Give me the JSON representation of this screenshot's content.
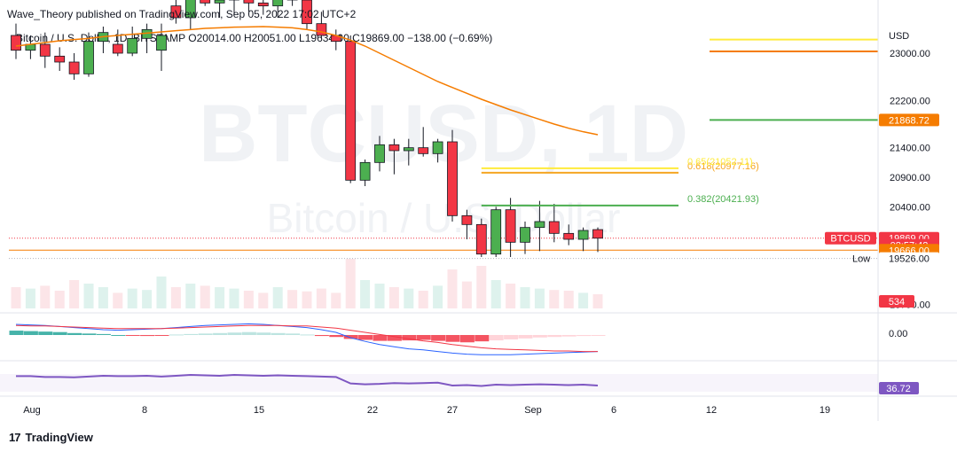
{
  "header": {
    "publisher": "Wave_Theory published on TradingView.com, Sep 05, 2022 17:02 UTC+2"
  },
  "brand": {
    "name": "TradingView",
    "mark": "17"
  },
  "chart_data": {
    "type": "candlestick",
    "symbol_line": "Bitcoin / U.S. Dollar, 1D, BITSTAMP",
    "ohlc_legend": {
      "o": "O20014.00",
      "h": "H20051.00",
      "l": "L19634.00",
      "c": "C19869.00",
      "change": "−138.00 (−0.69%)"
    },
    "watermark": {
      "ticker": "BTCUSD, 1D",
      "name": "Bitcoin / U.S. Dollar"
    },
    "currency": "USD",
    "price_ticks": [
      "23000.00",
      "22200.00",
      "21400.00",
      "20900.00",
      "20400.00",
      "18750.00"
    ],
    "price_tick_values": [
      23000,
      22200,
      21400,
      20900,
      20400,
      18750
    ],
    "x_ticks": [
      "Aug",
      "8",
      "15",
      "22",
      "27",
      "Sep",
      "6",
      "12",
      "19"
    ],
    "candles": [
      {
        "o": 23300,
        "h": 23500,
        "l": 22900,
        "c": 23050
      },
      {
        "o": 23050,
        "h": 23300,
        "l": 22900,
        "c": 23150
      },
      {
        "o": 23150,
        "h": 23350,
        "l": 22750,
        "c": 22950
      },
      {
        "o": 22950,
        "h": 23100,
        "l": 22700,
        "c": 22850
      },
      {
        "o": 22850,
        "h": 23000,
        "l": 22550,
        "c": 22650
      },
      {
        "o": 22650,
        "h": 23350,
        "l": 22600,
        "c": 23200
      },
      {
        "o": 23200,
        "h": 23450,
        "l": 23000,
        "c": 23350
      },
      {
        "o": 23150,
        "h": 23400,
        "l": 22950,
        "c": 23000
      },
      {
        "o": 23000,
        "h": 23450,
        "l": 22950,
        "c": 23250
      },
      {
        "o": 23250,
        "h": 23500,
        "l": 23000,
        "c": 23400
      },
      {
        "o": 23050,
        "h": 23500,
        "l": 22700,
        "c": 23300
      },
      {
        "o": 23800,
        "h": 24200,
        "l": 23500,
        "c": 23600
      },
      {
        "o": 23600,
        "h": 24300,
        "l": 23400,
        "c": 24100
      },
      {
        "o": 24100,
        "h": 24400,
        "l": 23800,
        "c": 23850
      },
      {
        "o": 23850,
        "h": 24200,
        "l": 23600,
        "c": 23900
      },
      {
        "o": 23900,
        "h": 24400,
        "l": 23650,
        "c": 24200
      },
      {
        "o": 24000,
        "h": 24300,
        "l": 23700,
        "c": 23850
      },
      {
        "o": 23850,
        "h": 24100,
        "l": 23650,
        "c": 23800
      },
      {
        "o": 23800,
        "h": 24200,
        "l": 23600,
        "c": 24000
      },
      {
        "o": 24000,
        "h": 24300,
        "l": 23800,
        "c": 23900
      },
      {
        "o": 23900,
        "h": 24100,
        "l": 23400,
        "c": 23500
      },
      {
        "o": 23500,
        "h": 23700,
        "l": 23250,
        "c": 23300
      },
      {
        "o": 23300,
        "h": 23400,
        "l": 23050,
        "c": 23200
      },
      {
        "o": 23200,
        "h": 23300,
        "l": 20800,
        "c": 20850
      },
      {
        "o": 20850,
        "h": 21200,
        "l": 20750,
        "c": 21150
      },
      {
        "o": 21150,
        "h": 21600,
        "l": 21000,
        "c": 21450
      },
      {
        "o": 21450,
        "h": 21550,
        "l": 20950,
        "c": 21350
      },
      {
        "o": 21350,
        "h": 21550,
        "l": 21100,
        "c": 21400
      },
      {
        "o": 21400,
        "h": 21750,
        "l": 21250,
        "c": 21300
      },
      {
        "o": 21300,
        "h": 21550,
        "l": 21150,
        "c": 21500
      },
      {
        "o": 21500,
        "h": 21700,
        "l": 20150,
        "c": 20250
      },
      {
        "o": 20250,
        "h": 20350,
        "l": 19850,
        "c": 20100
      },
      {
        "o": 20100,
        "h": 20200,
        "l": 19550,
        "c": 19600
      },
      {
        "o": 19600,
        "h": 20400,
        "l": 19550,
        "c": 20350
      },
      {
        "o": 20350,
        "h": 20550,
        "l": 19550,
        "c": 19800
      },
      {
        "o": 19800,
        "h": 20150,
        "l": 19600,
        "c": 20050
      },
      {
        "o": 20050,
        "h": 20500,
        "l": 19650,
        "c": 20150
      },
      {
        "o": 20150,
        "h": 20450,
        "l": 19800,
        "c": 19950
      },
      {
        "o": 19950,
        "h": 20100,
        "l": 19750,
        "c": 19850
      },
      {
        "o": 19850,
        "h": 20050,
        "l": 19650,
        "c": 20000
      },
      {
        "o": 20014,
        "h": 20051,
        "l": 19634,
        "c": 19869
      }
    ],
    "ma_values": [
      23120,
      23150,
      23180,
      23210,
      23230,
      23250,
      23280,
      23300,
      23320,
      23340,
      23360,
      23380,
      23400,
      23420,
      23430,
      23440,
      23445,
      23450,
      23440,
      23430,
      23400,
      23360,
      23300,
      23220,
      23120,
      23000,
      22880,
      22760,
      22640,
      22520,
      22420,
      22320,
      22220,
      22130,
      22040,
      21960,
      21880,
      21800,
      21730,
      21670,
      21620
    ],
    "fib_levels": [
      {
        "label": "0.382(20421.93)",
        "value": 20421.93,
        "color": "#4caf50"
      },
      {
        "label": "0.618(20977.16)",
        "value": 20977.16,
        "color": "#f5a623"
      },
      {
        "label": "0.65(21052.11)",
        "value": 21052.11,
        "color": "#ffeb3b"
      }
    ],
    "right_lines": [
      {
        "value": 23230,
        "color": "#ffeb3b"
      },
      {
        "value": 23030,
        "color": "#f57c00"
      },
      {
        "value": 21868.72,
        "color": "#4caf50"
      }
    ],
    "price_labels": [
      {
        "text": "21868.72",
        "bg": "#f57c00",
        "value": 21868.72
      },
      {
        "text": "19869.00",
        "bg": "#f23645",
        "value": 19869
      },
      {
        "text": "08:57:42",
        "bg": "#f23645",
        "value": 19750
      },
      {
        "text": "19666.00",
        "bg": "#f57c00",
        "value": 19666
      },
      {
        "text": "19526.00",
        "bg": "#ffffff",
        "value": 19526
      }
    ],
    "btc_tag": "BTCUSD",
    "low_label": "Low",
    "volume_tag": "534",
    "volume": [
      30,
      28,
      32,
      25,
      40,
      35,
      30,
      22,
      28,
      26,
      45,
      30,
      35,
      32,
      30,
      28,
      25,
      22,
      30,
      26,
      24,
      28,
      22,
      70,
      40,
      35,
      30,
      28,
      25,
      32,
      55,
      38,
      60,
      40,
      35,
      30,
      28,
      26,
      25,
      22,
      20
    ],
    "macd": {
      "zero_label": "0.00",
      "hist": [
        9,
        8,
        7,
        6,
        4,
        3,
        2,
        0,
        -1,
        -2,
        -1,
        1,
        2,
        3,
        4,
        5,
        6,
        5,
        4,
        3,
        1,
        -2,
        -4,
        -8,
        -10,
        -12,
        -12,
        -11,
        -10,
        -12,
        -14,
        -15,
        -13,
        -11,
        -9,
        -7,
        -5,
        -4,
        -3,
        -2,
        -1
      ],
      "macd_line": [
        20,
        19,
        18,
        16,
        14,
        12,
        10,
        9,
        10,
        11,
        12,
        14,
        16,
        18,
        19,
        20,
        21,
        20,
        18,
        16,
        14,
        10,
        5,
        -5,
        -12,
        -18,
        -22,
        -26,
        -28,
        -31,
        -34,
        -36,
        -37,
        -37,
        -37,
        -36,
        -35,
        -34,
        -33,
        -32,
        -31
      ],
      "signal_line": [
        18,
        17,
        17,
        16,
        15,
        14,
        13,
        12,
        12,
        12,
        12,
        13,
        14,
        15,
        16,
        17,
        18,
        18,
        18,
        17,
        17,
        15,
        13,
        9,
        5,
        1,
        -3,
        -7,
        -11,
        -14,
        -18,
        -21,
        -24,
        -26,
        -27,
        -28,
        -29,
        -30,
        -30,
        -31,
        -31
      ]
    },
    "rsi": {
      "tag": "36.72",
      "values": [
        60,
        60,
        58,
        58,
        57,
        59,
        61,
        60,
        60,
        61,
        59,
        61,
        63,
        62,
        61,
        63,
        62,
        61,
        62,
        61,
        60,
        59,
        58,
        42,
        40,
        41,
        43,
        42,
        43,
        44,
        37,
        38,
        36,
        39,
        38,
        39,
        40,
        39,
        38,
        39,
        37
      ]
    }
  }
}
